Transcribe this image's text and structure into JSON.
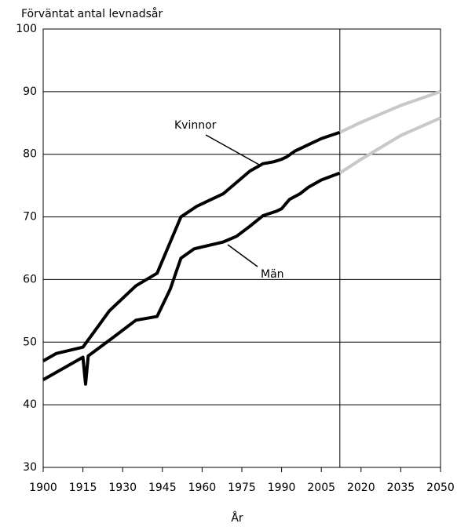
{
  "chart_data": {
    "type": "line",
    "y_label": "Förväntat antal levnadsår",
    "x_label": "År",
    "xlim": [
      1900,
      2050
    ],
    "xticks": [
      1900,
      1915,
      1930,
      1945,
      1960,
      1975,
      1990,
      2005,
      2020,
      2035,
      2050
    ],
    "ylim": [
      30,
      100
    ],
    "yticks": [
      30,
      40,
      50,
      60,
      70,
      80,
      90,
      100
    ],
    "grid": true,
    "divider_x": 2012,
    "series": [
      {
        "name": "Kvinnor",
        "color": "#000000",
        "x": [
          1900,
          1905,
          1915,
          1925,
          1935,
          1943,
          1948,
          1952,
          1958,
          1968,
          1973,
          1978,
          1983,
          1987,
          1990,
          1992,
          1995,
          2000,
          2005,
          2012
        ],
        "values": [
          47,
          48.2,
          49.2,
          55,
          59,
          61,
          66,
          70,
          71.7,
          73.7,
          75.5,
          77.3,
          78.5,
          78.8,
          79.2,
          79.6,
          80.5,
          81.5,
          82.5,
          83.5
        ],
        "projection": {
          "color": "#c8c8c8",
          "x": [
            2012,
            2020,
            2035,
            2050
          ],
          "values": [
            83.5,
            85.1,
            87.8,
            90
          ]
        }
      },
      {
        "name": "Män",
        "color": "#000000",
        "x": [
          1900,
          1915,
          1916,
          1917,
          1925,
          1935,
          1943,
          1948,
          1952,
          1957,
          1968,
          1973,
          1978,
          1983,
          1988,
          1990,
          1993,
          1997,
          2000,
          2005,
          2012
        ],
        "values": [
          44,
          47.6,
          43.3,
          47.8,
          50.3,
          53.5,
          54.1,
          58.5,
          63.4,
          64.9,
          66,
          66.9,
          68.5,
          70.2,
          70.9,
          71.3,
          72.8,
          73.7,
          74.7,
          75.9,
          77
        ],
        "projection": {
          "color": "#c8c8c8",
          "x": [
            2012,
            2020,
            2035,
            2050
          ],
          "values": [
            77,
            79.2,
            83,
            85.8
          ]
        }
      }
    ]
  }
}
